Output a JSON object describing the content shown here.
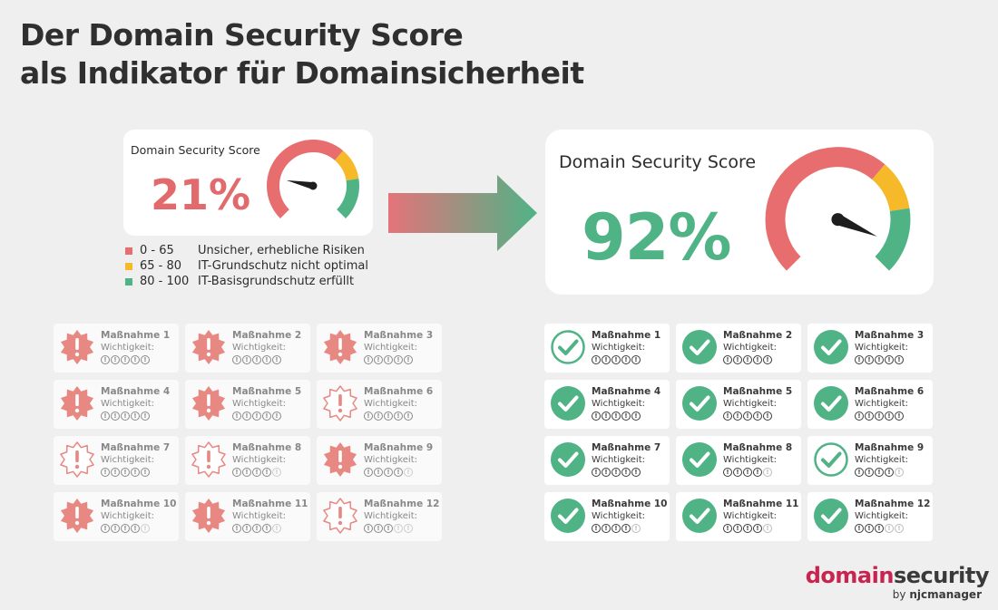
{
  "title": {
    "line1": "Der Domain Security Score",
    "line2": "als Indikator für Domainsicherheit"
  },
  "before": {
    "label": "Domain Security Score",
    "score": "21%",
    "score_value": 21
  },
  "after": {
    "label": "Domain Security Score",
    "score": "92%",
    "score_value": 92
  },
  "legend": [
    {
      "range": "0 - 65",
      "text": "Unsicher, erhebliche Risiken",
      "color": "#e86d6e"
    },
    {
      "range": "65 - 80",
      "text": "IT-Grundschutz nicht optimal",
      "color": "#f5b929"
    },
    {
      "range": "80 - 100",
      "text": "IT-Basisgrundschutz erfüllt",
      "color": "#4fb386"
    }
  ],
  "colors": {
    "red": "#e86d6e",
    "yellow": "#f5b929",
    "green": "#4fb386",
    "brand": "#c8244f"
  },
  "measures_before": [
    {
      "name": "Maßnahme 1",
      "importance_label": "Wichtigkeit:",
      "importance": 5,
      "icon": "warning-burst-filled-icon"
    },
    {
      "name": "Maßnahme 2",
      "importance_label": "Wichtigkeit:",
      "importance": 5,
      "icon": "warning-burst-filled-icon"
    },
    {
      "name": "Maßnahme 3",
      "importance_label": "Wichtigkeit:",
      "importance": 5,
      "icon": "warning-burst-filled-icon"
    },
    {
      "name": "Maßnahme 4",
      "importance_label": "Wichtigkeit:",
      "importance": 5,
      "icon": "warning-burst-filled-icon"
    },
    {
      "name": "Maßnahme 5",
      "importance_label": "Wichtigkeit:",
      "importance": 5,
      "icon": "warning-burst-filled-icon"
    },
    {
      "name": "Maßnahme 6",
      "importance_label": "Wichtigkeit:",
      "importance": 5,
      "icon": "warning-burst-outline-icon"
    },
    {
      "name": "Maßnahme 7",
      "importance_label": "Wichtigkeit:",
      "importance": 5,
      "icon": "warning-burst-outline-icon"
    },
    {
      "name": "Maßnahme 8",
      "importance_label": "Wichtigkeit:",
      "importance": 4,
      "icon": "warning-burst-outline-icon"
    },
    {
      "name": "Maßnahme 9",
      "importance_label": "Wichtigkeit:",
      "importance": 4,
      "icon": "warning-burst-filled-icon"
    },
    {
      "name": "Maßnahme 10",
      "importance_label": "Wichtigkeit:",
      "importance": 4,
      "icon": "warning-burst-filled-icon"
    },
    {
      "name": "Maßnahme 11",
      "importance_label": "Wichtigkeit:",
      "importance": 4,
      "icon": "warning-burst-filled-icon"
    },
    {
      "name": "Maßnahme 12",
      "importance_label": "Wichtigkeit:",
      "importance": 3,
      "icon": "warning-burst-outline-icon"
    }
  ],
  "measures_after": [
    {
      "name": "Maßnahme 1",
      "importance_label": "Wichtigkeit:",
      "importance": 5,
      "icon": "check-circle-outline-icon"
    },
    {
      "name": "Maßnahme 2",
      "importance_label": "Wichtigkeit:",
      "importance": 5,
      "icon": "check-circle-filled-icon"
    },
    {
      "name": "Maßnahme 3",
      "importance_label": "Wichtigkeit:",
      "importance": 5,
      "icon": "check-circle-filled-icon"
    },
    {
      "name": "Maßnahme 4",
      "importance_label": "Wichtigkeit:",
      "importance": 5,
      "icon": "check-circle-filled-icon"
    },
    {
      "name": "Maßnahme 5",
      "importance_label": "Wichtigkeit:",
      "importance": 5,
      "icon": "check-circle-filled-icon"
    },
    {
      "name": "Maßnahme 6",
      "importance_label": "Wichtigkeit:",
      "importance": 5,
      "icon": "check-circle-filled-icon"
    },
    {
      "name": "Maßnahme 7",
      "importance_label": "Wichtigkeit:",
      "importance": 5,
      "icon": "check-circle-filled-icon"
    },
    {
      "name": "Maßnahme 8",
      "importance_label": "Wichtigkeit:",
      "importance": 4,
      "icon": "check-circle-filled-icon"
    },
    {
      "name": "Maßnahme 9",
      "importance_label": "Wichtigkeit:",
      "importance": 4,
      "icon": "check-circle-outline-icon"
    },
    {
      "name": "Maßnahme 10",
      "importance_label": "Wichtigkeit:",
      "importance": 4,
      "icon": "check-circle-filled-icon"
    },
    {
      "name": "Maßnahme 11",
      "importance_label": "Wichtigkeit:",
      "importance": 4,
      "icon": "check-circle-filled-icon"
    },
    {
      "name": "Maßnahme 12",
      "importance_label": "Wichtigkeit:",
      "importance": 3,
      "icon": "check-circle-filled-icon"
    }
  ],
  "importance_glyph": "!",
  "brand": {
    "part1": "domain",
    "part2": "security",
    "by": "by",
    "company": "njcmanager"
  }
}
